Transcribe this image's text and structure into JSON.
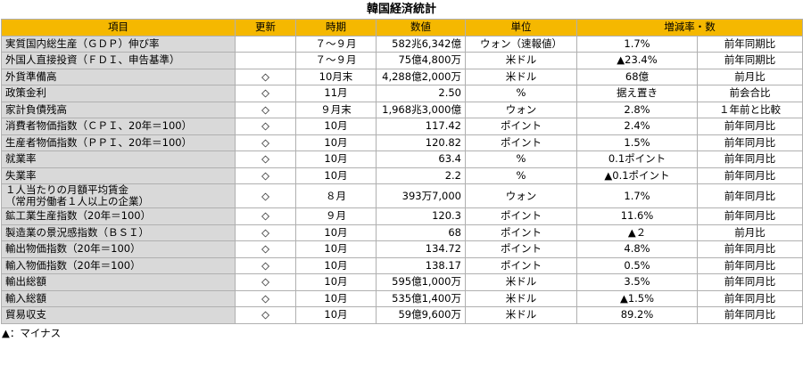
{
  "title": "韓国経済統計",
  "table": {
    "header": [
      "項目",
      "更新",
      "時期",
      "数値",
      "単位",
      "増減率・数"
    ],
    "rows": [
      [
        "実質国内総生産（ＧＤＰ）伸び率",
        null,
        "７～９月",
        "582兆6,342億",
        "ウォン（速報値）",
        "1.7%",
        "前年同期比"
      ],
      [
        "外国人直接投資（ＦＤＩ、申告基準）",
        null,
        "７～９月",
        "75億4,800万",
        "米ドル",
        "▲23.4%",
        "前年同期比"
      ],
      [
        "外貨準備高",
        "◇",
        "10月末",
        "4,288億2,000万",
        "米ドル",
        "68億",
        "前月比"
      ],
      [
        "政策金利",
        "◇",
        "11月",
        "2.50",
        "%",
        "据え置き",
        "前会合比"
      ],
      [
        "家計負債残高",
        "◇",
        "９月末",
        "1,968兆3,000億",
        "ウォン",
        "2.8%",
        "１年前と比較"
      ],
      [
        "消費者物価指数（ＣＰＩ、20年＝100）",
        "◇",
        "10月",
        "117.42",
        "ポイント",
        "2.4%",
        "前年同月比"
      ],
      [
        "生産者物価指数（ＰＰＩ、20年＝100）",
        "◇",
        "10月",
        "120.82",
        "ポイント",
        "1.5%",
        "前年同月比"
      ],
      [
        "就業率",
        "◇",
        "10月",
        "63.4",
        "%",
        "0.1ポイント",
        "前年同月比"
      ],
      [
        "失業率",
        "◇",
        "10月",
        "2.2",
        "%",
        "▲0.1ポイント",
        "前年同月比"
      ],
      [
        "１人当たりの月額平均賃金\n（常用労働者１人以上の企業）",
        "◇",
        "８月",
        "393万7,000",
        "ウォン",
        "1.7%",
        "前年同月比"
      ],
      [
        "鉱工業生産指数（20年＝100）",
        "◇",
        "９月",
        "120.3",
        "ポイント",
        "11.6%",
        "前年同月比"
      ],
      [
        "製造業の景況感指数（ＢＳＩ）",
        "◇",
        "10月",
        "68",
        "ポイント",
        "▲２",
        "前月比"
      ],
      [
        "輸出物価指数（20年＝100）",
        "◇",
        "10月",
        "134.72",
        "ポイント",
        "4.8%",
        "前年同月比"
      ],
      [
        "輸入物価指数（20年＝100）",
        "◇",
        "10月",
        "138.17",
        "ポイント",
        "0.5%",
        "前年同月比"
      ],
      [
        "輸出総額",
        "◇",
        "10月",
        "595億1,000万",
        "米ドル",
        "3.5%",
        "前年同月比"
      ],
      [
        "輸入総額",
        "◇",
        "10月",
        "535億1,400万",
        "米ドル",
        "▲1.5%",
        "前年同月比"
      ],
      [
        "貿易収支",
        "◇",
        "10月",
        "59億9,600万",
        "米ドル",
        "89.2%",
        "前年同月比"
      ]
    ]
  },
  "footnote": "▲：マイナス"
}
